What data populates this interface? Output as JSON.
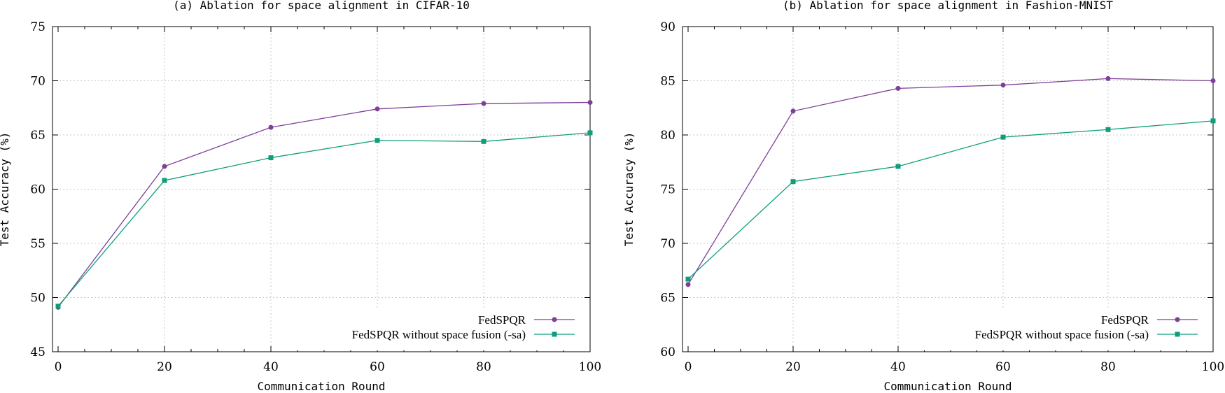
{
  "chart_data": [
    {
      "type": "line",
      "title": "(a) Ablation for space alignment in CIFAR-10",
      "xlabel": "Communication Round",
      "ylabel": "Test Accuracy (%)",
      "xlim": [
        0,
        100
      ],
      "ylim": [
        45,
        75
      ],
      "xticks": [
        0,
        20,
        40,
        60,
        80,
        100
      ],
      "yticks": [
        45,
        50,
        55,
        60,
        65,
        70,
        75
      ],
      "grid": true,
      "legend_position": "bottom-right",
      "series": [
        {
          "name": "FedSPQR",
          "color": "#7e3f98",
          "marker": "circle",
          "x": [
            0,
            20,
            40,
            60,
            80,
            100
          ],
          "y": [
            49.1,
            62.1,
            65.7,
            67.4,
            67.9,
            68.0
          ]
        },
        {
          "name": "FedSPQR without space fusion (-sa)",
          "color": "#0f9e7a",
          "marker": "square",
          "x": [
            0,
            20,
            40,
            60,
            80,
            100
          ],
          "y": [
            49.2,
            60.8,
            62.9,
            64.5,
            64.4,
            65.2
          ]
        }
      ]
    },
    {
      "type": "line",
      "title": "(b) Ablation for space alignment in Fashion-MNIST",
      "xlabel": "Communication Round",
      "ylabel": "Test Accuracy (%)",
      "xlim": [
        0,
        100
      ],
      "ylim": [
        60,
        90
      ],
      "xticks": [
        0,
        20,
        40,
        60,
        80,
        100
      ],
      "yticks": [
        60,
        65,
        70,
        75,
        80,
        85,
        90
      ],
      "grid": true,
      "legend_position": "bottom-right",
      "series": [
        {
          "name": "FedSPQR",
          "color": "#7e3f98",
          "marker": "circle",
          "x": [
            0,
            20,
            40,
            60,
            80,
            100
          ],
          "y": [
            66.2,
            82.2,
            84.3,
            84.6,
            85.2,
            85.0
          ]
        },
        {
          "name": "FedSPQR without space fusion (-sa)",
          "color": "#0f9e7a",
          "marker": "square",
          "x": [
            0,
            20,
            40,
            60,
            80,
            100
          ],
          "y": [
            66.7,
            75.7,
            77.1,
            79.8,
            80.5,
            81.3
          ]
        }
      ]
    }
  ]
}
